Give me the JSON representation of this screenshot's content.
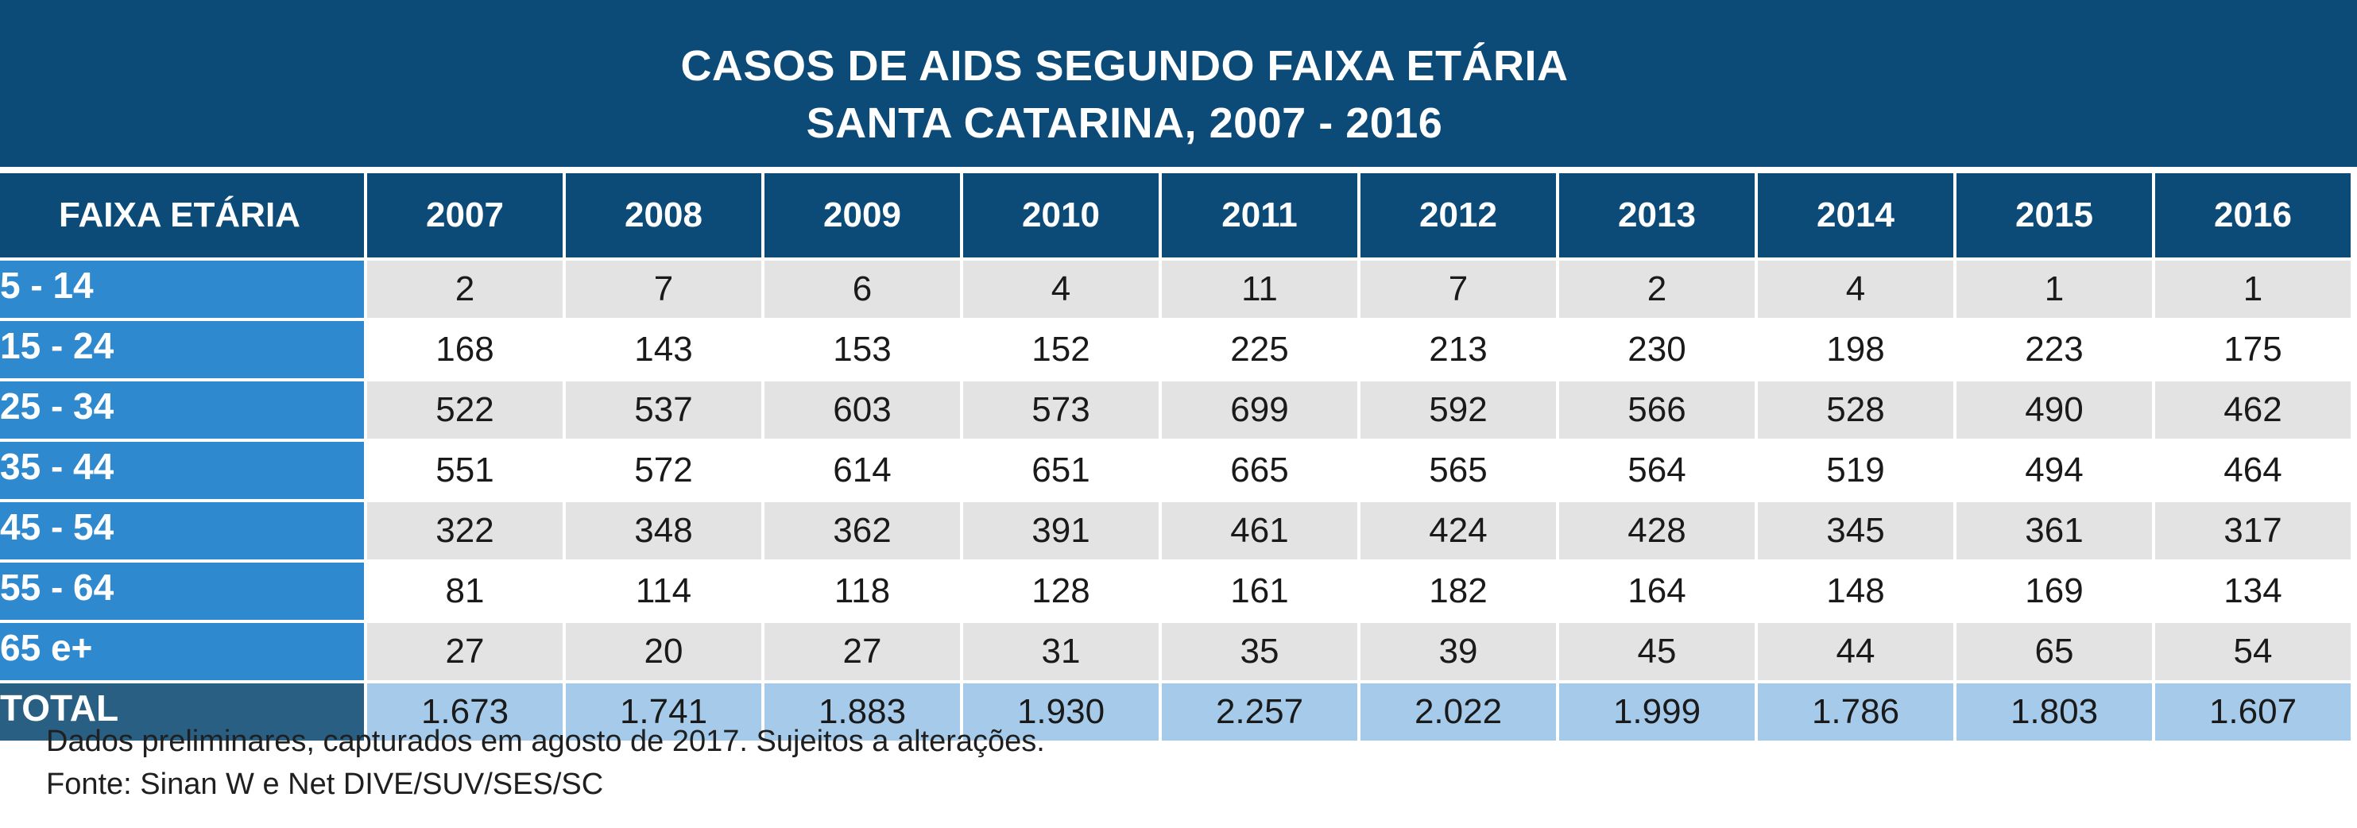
{
  "chart_data": {
    "type": "table",
    "title": "CASOS DE AIDS SEGUNDO FAIXA ETÁRIA",
    "subtitle": "SANTA CATARINA, 2007 - 2016",
    "row_header_label": "FAIXA ETÁRIA",
    "columns": [
      "2007",
      "2008",
      "2009",
      "2010",
      "2011",
      "2012",
      "2013",
      "2014",
      "2015",
      "2016"
    ],
    "rows": [
      {
        "label": "5 - 14",
        "values": [
          "2",
          "7",
          "6",
          "4",
          "11",
          "7",
          "2",
          "4",
          "1",
          "1"
        ]
      },
      {
        "label": "15 - 24",
        "values": [
          "168",
          "143",
          "153",
          "152",
          "225",
          "213",
          "230",
          "198",
          "223",
          "175"
        ]
      },
      {
        "label": "25 - 34",
        "values": [
          "522",
          "537",
          "603",
          "573",
          "699",
          "592",
          "566",
          "528",
          "490",
          "462"
        ]
      },
      {
        "label": "35 - 44",
        "values": [
          "551",
          "572",
          "614",
          "651",
          "665",
          "565",
          "564",
          "519",
          "494",
          "464"
        ]
      },
      {
        "label": "45 - 54",
        "values": [
          "322",
          "348",
          "362",
          "391",
          "461",
          "424",
          "428",
          "345",
          "361",
          "317"
        ]
      },
      {
        "label": "55 - 64",
        "values": [
          "81",
          "114",
          "118",
          "128",
          "161",
          "182",
          "164",
          "148",
          "169",
          "134"
        ]
      },
      {
        "label": "65 e+",
        "values": [
          "27",
          "20",
          "27",
          "31",
          "35",
          "39",
          "45",
          "44",
          "65",
          "54"
        ]
      }
    ],
    "total": {
      "label": "TOTAL",
      "values": [
        "1.673",
        "1.741",
        "1.883",
        "1.930",
        "2.257",
        "2.022",
        "1.999",
        "1.786",
        "1.803",
        "1.607"
      ]
    }
  },
  "footer": {
    "note": "Dados preliminares, capturados em agosto de 2017. Sujeitos a alterações.",
    "source": "Fonte: Sinan W e Net DIVE/SUV/SES/SC"
  },
  "colors": {
    "header_bg": "#0c4a78",
    "label_bg": "#2f89cf",
    "total_label_bg": "#2a5f84",
    "total_bg": "#a6cbea",
    "stripe_bg": "#e3e3e3"
  }
}
